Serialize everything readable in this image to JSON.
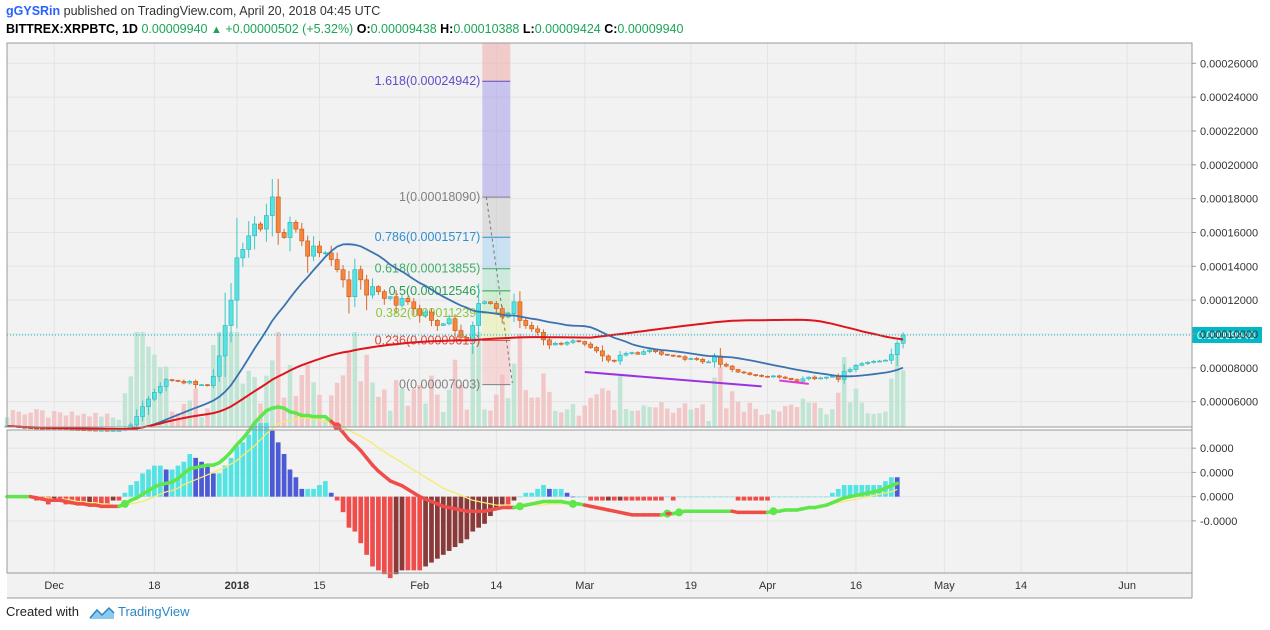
{
  "header": {
    "user": "gGYSRin",
    "published_text": "published on TradingView.com, April 20, 2018 04:45 UTC",
    "symbol": "BITTREX:XRPBTC, 1D",
    "last": "0.00009940",
    "change": "+0.00000502 (+5.32%)",
    "o_label": "O:",
    "o": "0.00009438",
    "h_label": "H:",
    "h": "0.00010388",
    "l_label": "L:",
    "l": "0.00009424",
    "c_label": "C:",
    "c": "0.00009940"
  },
  "footer": {
    "created_with": "Created with",
    "brand": "TradingView"
  },
  "colors": {
    "bg": "#f2f2f2",
    "up": "#53e3e3",
    "down": "#f5873a",
    "ma_blue": "#3a73b0",
    "ma_red": "#e0141b",
    "ma_orange": "#f3a27a",
    "macd_green": "#5ee64b",
    "macd_red": "#ef4d4b",
    "macd_signal": "#f5ec6c",
    "price_label": "#00b8c6"
  },
  "chart_data": {
    "type": "candlestick",
    "title": "BITTREX:XRPBTC, 1D",
    "price_axis": {
      "ylim": [
        4.5e-05,
        0.000272
      ],
      "ticks": [
        6e-05,
        8e-05,
        0.0001,
        0.00012,
        0.00014,
        0.00016,
        0.00018,
        0.0002,
        0.00022,
        0.00024,
        0.00026
      ],
      "tick_labels": [
        "0.00006000",
        "0.00008000",
        "0.00010000",
        "0.00012000",
        "0.00014000",
        "0.00016000",
        "0.00018000",
        "0.00020000",
        "0.00022000",
        "0.00024000",
        "0.00026000"
      ],
      "last_price": 9.94e-05,
      "last_price_label": "0.00009940"
    },
    "x_axis": {
      "start": "2017-11-23",
      "end": "2018-06-12",
      "ticks": [
        {
          "date": "2017-12-01",
          "label": "Dec",
          "bold": false
        },
        {
          "date": "2017-12-18",
          "label": "18",
          "bold": false
        },
        {
          "date": "2018-01-01",
          "label": "2018",
          "bold": true
        },
        {
          "date": "2018-01-15",
          "label": "15",
          "bold": false
        },
        {
          "date": "2018-02-01",
          "label": "Feb",
          "bold": false
        },
        {
          "date": "2018-02-14",
          "label": "14",
          "bold": false
        },
        {
          "date": "2018-03-01",
          "label": "Mar",
          "bold": false
        },
        {
          "date": "2018-03-19",
          "label": "19",
          "bold": false
        },
        {
          "date": "2018-04-01",
          "label": "Apr",
          "bold": false
        },
        {
          "date": "2018-04-16",
          "label": "16",
          "bold": false
        },
        {
          "date": "2018-05-01",
          "label": "May",
          "bold": false
        },
        {
          "date": "2018-05-14",
          "label": "14",
          "bold": false
        },
        {
          "date": "2018-06-01",
          "label": "Jun",
          "bold": false
        }
      ]
    },
    "closes": {
      "start": "2017-11-23",
      "values": [
        4.55e-05,
        4.52e-05,
        4.48e-05,
        4.46e-05,
        4.44e-05,
        4.42e-05,
        4.4e-05,
        4.39e-05,
        4.38e-05,
        4.37e-05,
        4.36e-05,
        4.35e-05,
        4.34e-05,
        4.33e-05,
        4.32e-05,
        4.31e-05,
        4.31e-05,
        4.3e-05,
        4.3e-05,
        4.3e-05,
        4.42e-05,
        4.62e-05,
        5.12e-05,
        5.7e-05,
        6.15e-05,
        6.55e-05,
        6.9e-05,
        7.3e-05,
        7.25e-05,
        7.2e-05,
        7.1e-05,
        7.2e-05,
        7e-05,
        7e-05,
        6.95e-05,
        7.5e-05,
        8.7e-05,
        0.000105,
        0.00012,
        0.000145,
        0.00015,
        0.000158,
        0.000165,
        0.000162,
        0.00017,
        0.000181,
        0.00016,
        0.000157,
        0.000166,
        0.000162,
        0.000155,
        0.000146,
        0.000152,
        0.000148,
        0.000148,
        0.000144,
        0.000138,
        0.000132,
        0.000122,
        0.000138,
        0.000132,
        0.000123,
        0.000128,
        0.000125,
        0.000121,
        0.000122,
        0.000117,
        0.000121,
        0.000119,
        0.000115,
        0.000111,
        0.000113,
        0.000108,
        0.000105,
        0.000106,
        0.000109,
        0.000102,
        9.8e-05,
        9.7e-05,
        0.000105,
        0.000118,
        0.000119,
        0.000118,
        0.000115,
        0.00011,
        0.000112,
        0.000119,
        0.000108,
        0.000105,
        0.000103,
        0.000101,
        9.65e-05,
        9.35e-05,
        9.45e-05,
        9.4e-05,
        9.5e-05,
        9.6e-05,
        9.55e-05,
        9.4e-05,
        9.2e-05,
        9e-05,
        8.7e-05,
        8.45e-05,
        8.4e-05,
        8.75e-05,
        8.85e-05,
        8.9e-05,
        8.8e-05,
        8.95e-05,
        9.05e-05,
        8.95e-05,
        8.8e-05,
        8.75e-05,
        8.7e-05,
        8.65e-05,
        8.5e-05,
        8.55e-05,
        8.5e-05,
        8.35e-05,
        8.35e-05,
        8.7e-05,
        8.2e-05,
        8.1e-05,
        7.9e-05,
        7.75e-05,
        7.7e-05,
        7.6e-05,
        7.55e-05,
        7.5e-05,
        7.48e-05,
        7.52e-05,
        7.45e-05,
        7.38e-05,
        7.3e-05,
        7.2e-05,
        7.35e-05,
        7.45e-05,
        7.35e-05,
        7.4e-05,
        7.45e-05,
        7.5e-05,
        7.32e-05,
        7.78e-05,
        7.9e-05,
        8.15e-05,
        8.25e-05,
        8.32e-05,
        8.38e-05,
        8.4e-05,
        8.45e-05,
        8.78e-05,
        9.45e-05,
        9.94e-05
      ]
    },
    "moving_averages": [
      {
        "color": "#3a73b0",
        "period": 20
      },
      {
        "color": "#e0141b",
        "period": 100
      }
    ],
    "fibonacci": [
      {
        "level": "1.618",
        "value": 0.00024942,
        "label": "1.618(0.00024942)",
        "color": "#5b4fc7"
      },
      {
        "level": "1",
        "value": 0.0001809,
        "label": "1(0.00018090)",
        "color": "#808080"
      },
      {
        "level": "0.786",
        "value": 0.00015717,
        "label": "0.786(0.00015717)",
        "color": "#2f8fd0"
      },
      {
        "level": "0.618",
        "value": 0.00013855,
        "label": "0.618(0.00013855)",
        "color": "#3fae6b"
      },
      {
        "level": "0.5",
        "value": 0.00012546,
        "label": "0.5(0.00012546)",
        "color": "#2a9d55"
      },
      {
        "level": "0.382",
        "value": 0.00011239,
        "label": "0.382(0.00011239)",
        "color": "#8cc63e"
      },
      {
        "level": "0.236",
        "value": 9.619e-05,
        "label": "0.236(0.00009619)",
        "color": "#d84b40"
      },
      {
        "level": "0",
        "value": 7.003e-05,
        "label": "0(0.00007003)",
        "color": "#808080"
      }
    ],
    "fib_date": "2018-02-14",
    "volume_text_note": "",
    "macd": {
      "ylim": [
        -6.3e-05,
        5.5e-05
      ],
      "ticks": [
        4e-05,
        2e-05,
        0.0,
        -2e-05
      ],
      "tick_labels": [
        "0.0000",
        "0.0000",
        "0.0000",
        "-0.0000"
      ],
      "start": "2017-11-23",
      "macd_values": [
        0.0,
        0.0,
        0.0,
        0.0,
        0.0,
        -1e-06,
        -2e-06,
        -3e-06,
        -3e-06,
        -3e-06,
        -4e-06,
        -5e-06,
        -6e-06,
        -6e-06,
        -7e-06,
        -7e-06,
        -8e-06,
        -8e-06,
        -8e-06,
        -8e-06,
        -6e-06,
        -3e-06,
        -1e-06,
        2e-06,
        5e-06,
        8e-06,
        1e-05,
        1.1e-05,
        1.2e-05,
        1.5e-05,
        1.9e-05,
        2.3e-05,
        2.4e-05,
        2.5e-05,
        2.6e-05,
        2.6e-05,
        2.8e-05,
        3.2e-05,
        3.7e-05,
        4.3e-05,
        4.8e-05,
        5.4e-05,
        6.1e-05,
        6.6e-05,
        7.1e-05,
        7.3e-05,
        7.4e-05,
        7.3e-05,
        7e-05,
        6.9e-05,
        6.7e-05,
        6.7e-05,
        6.6e-05,
        6.6e-05,
        6.6e-05,
        6.2e-05,
        5.8e-05,
        5.3e-05,
        4.7e-05,
        4.3e-05,
        3.8e-05,
        3.2e-05,
        2.6e-05,
        2.1e-05,
        1.7e-05,
        1.3e-05,
        1.1e-05,
        9e-06,
        6e-06,
        3e-06,
        0.0,
        -2e-06,
        -4e-06,
        -6e-06,
        -8e-06,
        -9e-06,
        -1e-05,
        -1.1e-05,
        -1.2e-05,
        -1.2e-05,
        -1.2e-05,
        -1.2e-05,
        -1.1e-05,
        -1e-05,
        -9e-06,
        -9e-06,
        -9e-06,
        -8e-06,
        -7e-06,
        -6e-06,
        -5e-06,
        -4e-06,
        -4e-06,
        -4e-06,
        -4e-06,
        -5e-06,
        -6e-06,
        -6e-06,
        -7e-06,
        -8e-06,
        -9e-06,
        -1e-05,
        -1.1e-05,
        -1.2e-05,
        -1.3e-05,
        -1.4e-05,
        -1.5e-05,
        -1.5e-05,
        -1.5e-05,
        -1.5e-05,
        -1.5e-05,
        -1.5e-05,
        -1.4e-05,
        -1.4e-05,
        -1.3e-05,
        -1.2e-05,
        -1.2e-05,
        -1.2e-05,
        -1.2e-05,
        -1.2e-05,
        -1.2e-05,
        -1.2e-05,
        -1.2e-05,
        -1.2e-05,
        -1.3e-05,
        -1.3e-05,
        -1.3e-05,
        -1.3e-05,
        -1.3e-05,
        -1.3e-05,
        -1.2e-05,
        -1.2e-05,
        -1.1e-05,
        -1.1e-05,
        -1.1e-05,
        -1e-05,
        -9e-06,
        -9e-06,
        -8e-06,
        -7e-06,
        -5e-06,
        -3e-06,
        -1e-06,
        0.0,
        1e-06,
        2e-06,
        3e-06,
        4e-06,
        5e-06,
        7e-06,
        9e-06,
        1.1e-05
      ],
      "signal_values": [
        0.0,
        0.0,
        0.0,
        0.0,
        0.0,
        0.0,
        -1e-06,
        -1e-06,
        -2e-06,
        -2e-06,
        -2e-06,
        -3e-06,
        -4e-06,
        -4e-06,
        -5e-06,
        -5e-06,
        -6e-06,
        -6e-06,
        -7e-06,
        -7e-06,
        -7e-06,
        -6e-06,
        -5e-06,
        -4e-06,
        -2e-06,
        0.0,
        2e-06,
        4e-06,
        5e-06,
        7e-06,
        1e-05,
        1.2e-05,
        1.4e-05,
        1.6e-05,
        1.8e-05,
        2e-05,
        2.2e-05,
        2.4e-05,
        2.7e-05,
        3e-05,
        3.4e-05,
        3.8e-05,
        4.2e-05,
        4.7e-05,
        5.2e-05,
        5.6e-05,
        6e-05,
        6.2e-05,
        6.3e-05,
        6.4e-05,
        6.5e-05,
        6.5e-05,
        6.4e-05,
        6.3e-05,
        6.2e-05,
        6.1e-05,
        5.9e-05,
        5.7e-05,
        5.5e-05,
        5.2e-05,
        5e-05,
        4.7e-05,
        4.4e-05,
        4e-05,
        3.7e-05,
        3.4e-05,
        3.1e-05,
        2.8e-05,
        2.5e-05,
        2.2e-05,
        1.9e-05,
        1.6e-05,
        1.3e-05,
        1e-05,
        7e-06,
        5e-06,
        3e-06,
        1e-06,
        -1e-06,
        -3e-06,
        -4e-06,
        -5e-06,
        -6e-06,
        -7e-06,
        -7e-06,
        -7e-06,
        -8e-06,
        -8e-06,
        -8e-06,
        -7e-06,
        -7e-06,
        -7e-06,
        -6e-06,
        -6e-06,
        -6e-06,
        -6e-06,
        -6e-06,
        -6e-06,
        -7e-06,
        -7e-06,
        -8e-06,
        -9e-06,
        -1e-05,
        -1.1e-05,
        -1.2e-05,
        -1.3e-05,
        -1.4e-05,
        -1.4e-05,
        -1.4e-05,
        -1.4e-05,
        -1.4e-05,
        -1.4e-05,
        -1.4e-05,
        -1.3e-05,
        -1.3e-05,
        -1.2e-05,
        -1.2e-05,
        -1.2e-05,
        -1.2e-05,
        -1.2e-05,
        -1.2e-05,
        -1.2e-05,
        -1.2e-05,
        -1.2e-05,
        -1.2e-05,
        -1.2e-05,
        -1.2e-05,
        -1.2e-05,
        -1.2e-05,
        -1.2e-05,
        -1.2e-05,
        -1.2e-05,
        -1.1e-05,
        -1.1e-05,
        -1.1e-05,
        -1e-05,
        -9e-06,
        -9e-06,
        -8e-06,
        -7e-06,
        -6e-06,
        -5e-06,
        -4e-06,
        -3e-06,
        -2e-06,
        -1e-06,
        0.0,
        1e-06,
        2e-06,
        3e-06,
        4e-06,
        6e-06
      ]
    }
  }
}
